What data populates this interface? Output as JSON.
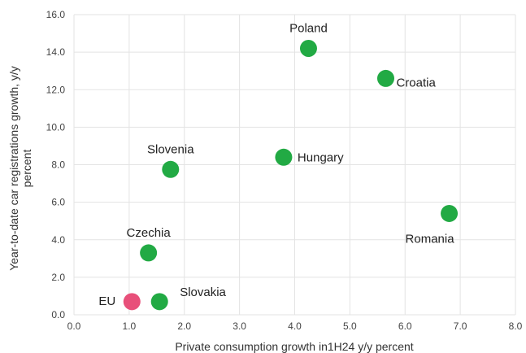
{
  "chart_data": {
    "type": "scatter",
    "title": "",
    "xlabel": "Private consumption growth in1H24 y/y percent",
    "ylabel_lines": [
      "Year-to-date car registrations growth, y/y",
      "percent"
    ],
    "xlim": [
      0,
      8
    ],
    "ylim": [
      0,
      16
    ],
    "x_ticks": [
      "0.0",
      "1.0",
      "2.0",
      "3.0",
      "4.0",
      "5.0",
      "6.0",
      "7.0",
      "8.0"
    ],
    "y_ticks": [
      "0.0",
      "2.0",
      "4.0",
      "6.0",
      "8.0",
      "10.0",
      "12.0",
      "14.0",
      "16.0"
    ],
    "grid": true,
    "points": [
      {
        "label": "Poland",
        "x": 4.25,
        "y": 14.2,
        "color": "#22aa44",
        "label_pos": "above"
      },
      {
        "label": "Croatia",
        "x": 5.65,
        "y": 12.6,
        "color": "#22aa44",
        "label_pos": "right-below"
      },
      {
        "label": "Hungary",
        "x": 3.8,
        "y": 8.4,
        "color": "#22aa44",
        "label_pos": "right"
      },
      {
        "label": "Slovenia",
        "x": 1.75,
        "y": 7.75,
        "color": "#22aa44",
        "label_pos": "above"
      },
      {
        "label": "Romania",
        "x": 6.8,
        "y": 5.4,
        "color": "#22aa44",
        "label_pos": "below-left"
      },
      {
        "label": "Czechia",
        "x": 1.35,
        "y": 3.3,
        "color": "#22aa44",
        "label_pos": "above"
      },
      {
        "label": "Slovakia",
        "x": 1.55,
        "y": 0.7,
        "color": "#22aa44",
        "label_pos": "right-up"
      },
      {
        "label": "EU",
        "x": 1.05,
        "y": 0.7,
        "color": "#e8507a",
        "label_pos": "left"
      }
    ]
  }
}
